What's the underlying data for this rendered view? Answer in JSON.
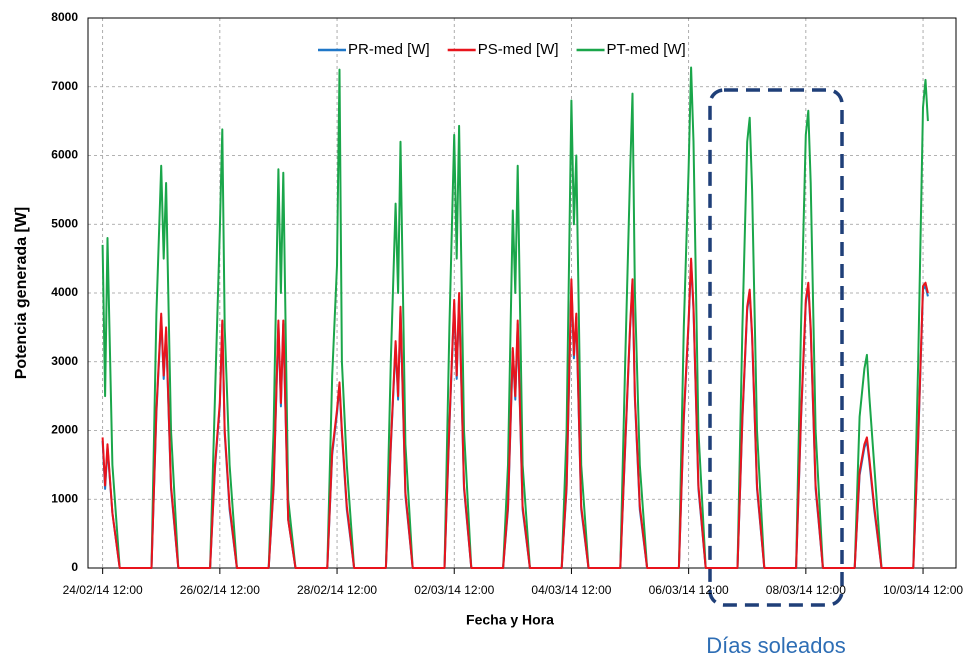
{
  "chart_data": {
    "type": "line",
    "xlabel": "Fecha y Hora",
    "ylabel": "Potencia generada  [W]",
    "annotation": "Días soleados",
    "x": [
      "24/02/14 12:00",
      "24/02/14 13:00",
      "24/02/14 14:00",
      "24/02/14 16:00",
      "24/02/14 19:00",
      "25/02/14 08:00",
      "25/02/14 10:00",
      "25/02/14 12:00",
      "25/02/14 13:00",
      "25/02/14 14:00",
      "25/02/14 16:00",
      "25/02/14 19:00",
      "26/02/14 08:00",
      "26/02/14 10:00",
      "26/02/14 12:00",
      "26/02/14 13:00",
      "26/02/14 14:00",
      "26/02/14 16:00",
      "26/02/14 19:00",
      "27/02/14 08:00",
      "27/02/14 10:00",
      "27/02/14 12:00",
      "27/02/14 13:00",
      "27/02/14 14:00",
      "27/02/14 16:00",
      "27/02/14 19:00",
      "28/02/14 08:00",
      "28/02/14 10:00",
      "28/02/14 12:00",
      "28/02/14 13:00",
      "28/02/14 14:00",
      "28/02/14 16:00",
      "28/02/14 19:00",
      "01/03/14 08:00",
      "01/03/14 10:00",
      "01/03/14 12:00",
      "01/03/14 13:00",
      "01/03/14 14:00",
      "01/03/14 16:00",
      "01/03/14 19:00",
      "02/03/14 08:00",
      "02/03/14 10:00",
      "02/03/14 12:00",
      "02/03/14 13:00",
      "02/03/14 14:00",
      "02/03/14 16:00",
      "02/03/14 19:00",
      "03/03/14 08:00",
      "03/03/14 10:00",
      "03/03/14 12:00",
      "03/03/14 13:00",
      "03/03/14 14:00",
      "03/03/14 16:00",
      "03/03/14 19:00",
      "04/03/14 08:00",
      "04/03/14 10:00",
      "04/03/14 12:00",
      "04/03/14 13:00",
      "04/03/14 14:00",
      "04/03/14 16:00",
      "04/03/14 19:00",
      "05/03/14 08:00",
      "05/03/14 10:00",
      "05/03/14 12:00",
      "05/03/14 13:00",
      "05/03/14 14:00",
      "05/03/14 16:00",
      "05/03/14 19:00",
      "06/03/14 08:00",
      "06/03/14 10:00",
      "06/03/14 12:00",
      "06/03/14 13:00",
      "06/03/14 14:00",
      "06/03/14 16:00",
      "06/03/14 19:00",
      "07/03/14 08:00",
      "07/03/14 10:00",
      "07/03/14 12:00",
      "07/03/14 13:00",
      "07/03/14 14:00",
      "07/03/14 16:00",
      "07/03/14 19:00",
      "08/03/14 08:00",
      "08/03/14 10:00",
      "08/03/14 12:00",
      "08/03/14 13:00",
      "08/03/14 14:00",
      "08/03/14 16:00",
      "08/03/14 19:00",
      "09/03/14 08:00",
      "09/03/14 10:00",
      "09/03/14 12:00",
      "09/03/14 13:00",
      "09/03/14 14:00",
      "09/03/14 16:00",
      "09/03/14 19:00",
      "10/03/14 08:00",
      "10/03/14 10:00",
      "10/03/14 12:00",
      "10/03/14 13:00",
      "10/03/14 14:00"
    ],
    "series": [
      {
        "name": "PR-med [W]",
        "color": "#1f77c8",
        "values": [
          1850,
          1150,
          1750,
          800,
          0,
          0,
          2250,
          3650,
          2750,
          3450,
          1150,
          0,
          0,
          1450,
          2350,
          3550,
          1950,
          850,
          0,
          0,
          1150,
          3550,
          2350,
          3550,
          700,
          0,
          0,
          1650,
          2250,
          2650,
          1950,
          850,
          0,
          0,
          1750,
          3250,
          2450,
          3750,
          1050,
          0,
          0,
          2050,
          3850,
          2750,
          3950,
          1150,
          0,
          0,
          850,
          3150,
          2450,
          3550,
          850,
          0,
          0,
          1150,
          4150,
          3050,
          3650,
          850,
          0,
          0,
          1750,
          3450,
          4150,
          2450,
          850,
          0,
          0,
          2150,
          3550,
          4450,
          3750,
          1150,
          0,
          0,
          2150,
          3750,
          4000,
          3350,
          1150,
          0,
          0,
          2150,
          3850,
          4100,
          3450,
          1150,
          0,
          0,
          1350,
          1750,
          1850,
          1550,
          850,
          0,
          0,
          1850,
          4050,
          4100,
          3950
        ]
      },
      {
        "name": "PS-med [W]",
        "color": "#e8141c",
        "values": [
          1900,
          1200,
          1800,
          800,
          0,
          0,
          2300,
          3700,
          2800,
          3500,
          1200,
          0,
          0,
          1500,
          2400,
          3600,
          2000,
          900,
          0,
          0,
          1200,
          3600,
          2400,
          3600,
          700,
          0,
          0,
          1700,
          2300,
          2700,
          2000,
          900,
          0,
          0,
          1800,
          3300,
          2500,
          3800,
          1100,
          0,
          0,
          2100,
          3900,
          2800,
          4000,
          1200,
          0,
          0,
          900,
          3200,
          2500,
          3600,
          900,
          0,
          0,
          1200,
          4200,
          3100,
          3700,
          900,
          0,
          0,
          1800,
          3500,
          4200,
          2500,
          900,
          0,
          0,
          2200,
          3600,
          4500,
          3800,
          1200,
          0,
          0,
          2200,
          3800,
          4050,
          3400,
          1200,
          0,
          0,
          2200,
          3900,
          4150,
          3500,
          1200,
          0,
          0,
          1400,
          1800,
          1900,
          1600,
          900,
          0,
          0,
          1900,
          4100,
          4150,
          4000
        ]
      },
      {
        "name": "PT-med [W]",
        "color": "#1aa64a",
        "values": [
          4700,
          2500,
          4800,
          1500,
          0,
          0,
          3700,
          5850,
          4500,
          5600,
          2000,
          0,
          0,
          2500,
          4900,
          6380,
          3500,
          1500,
          0,
          0,
          2000,
          5800,
          4000,
          5750,
          1000,
          0,
          0,
          2800,
          4400,
          7250,
          3000,
          1500,
          0,
          0,
          3000,
          5300,
          4000,
          6200,
          1800,
          0,
          0,
          3500,
          6300,
          4500,
          6430,
          2000,
          0,
          0,
          1500,
          5200,
          4000,
          5850,
          1500,
          0,
          0,
          2000,
          6800,
          5000,
          6000,
          1500,
          0,
          0,
          3000,
          5700,
          6900,
          4000,
          1500,
          0,
          0,
          3500,
          5800,
          7280,
          6200,
          2000,
          0,
          0,
          3500,
          6200,
          6550,
          5500,
          2000,
          0,
          0,
          3500,
          6300,
          6650,
          5600,
          2000,
          0,
          0,
          2200,
          2900,
          3100,
          2500,
          1500,
          0,
          0,
          3000,
          6700,
          7100,
          6500
        ]
      }
    ],
    "xlim": [
      "24/02/14 06:00",
      "11/03/14 01:30"
    ],
    "xticks": [
      "24/02/14 12:00",
      "26/02/14 12:00",
      "28/02/14 12:00",
      "02/03/14 12:00",
      "04/03/14 12:00",
      "06/03/14 12:00",
      "08/03/14 12:00",
      "10/03/14 12:00"
    ],
    "ylim": [
      0,
      8000
    ],
    "yticks": [
      0,
      1000,
      2000,
      3000,
      4000,
      5000,
      6000,
      7000,
      8000
    ],
    "grid": true,
    "legend": "top"
  }
}
